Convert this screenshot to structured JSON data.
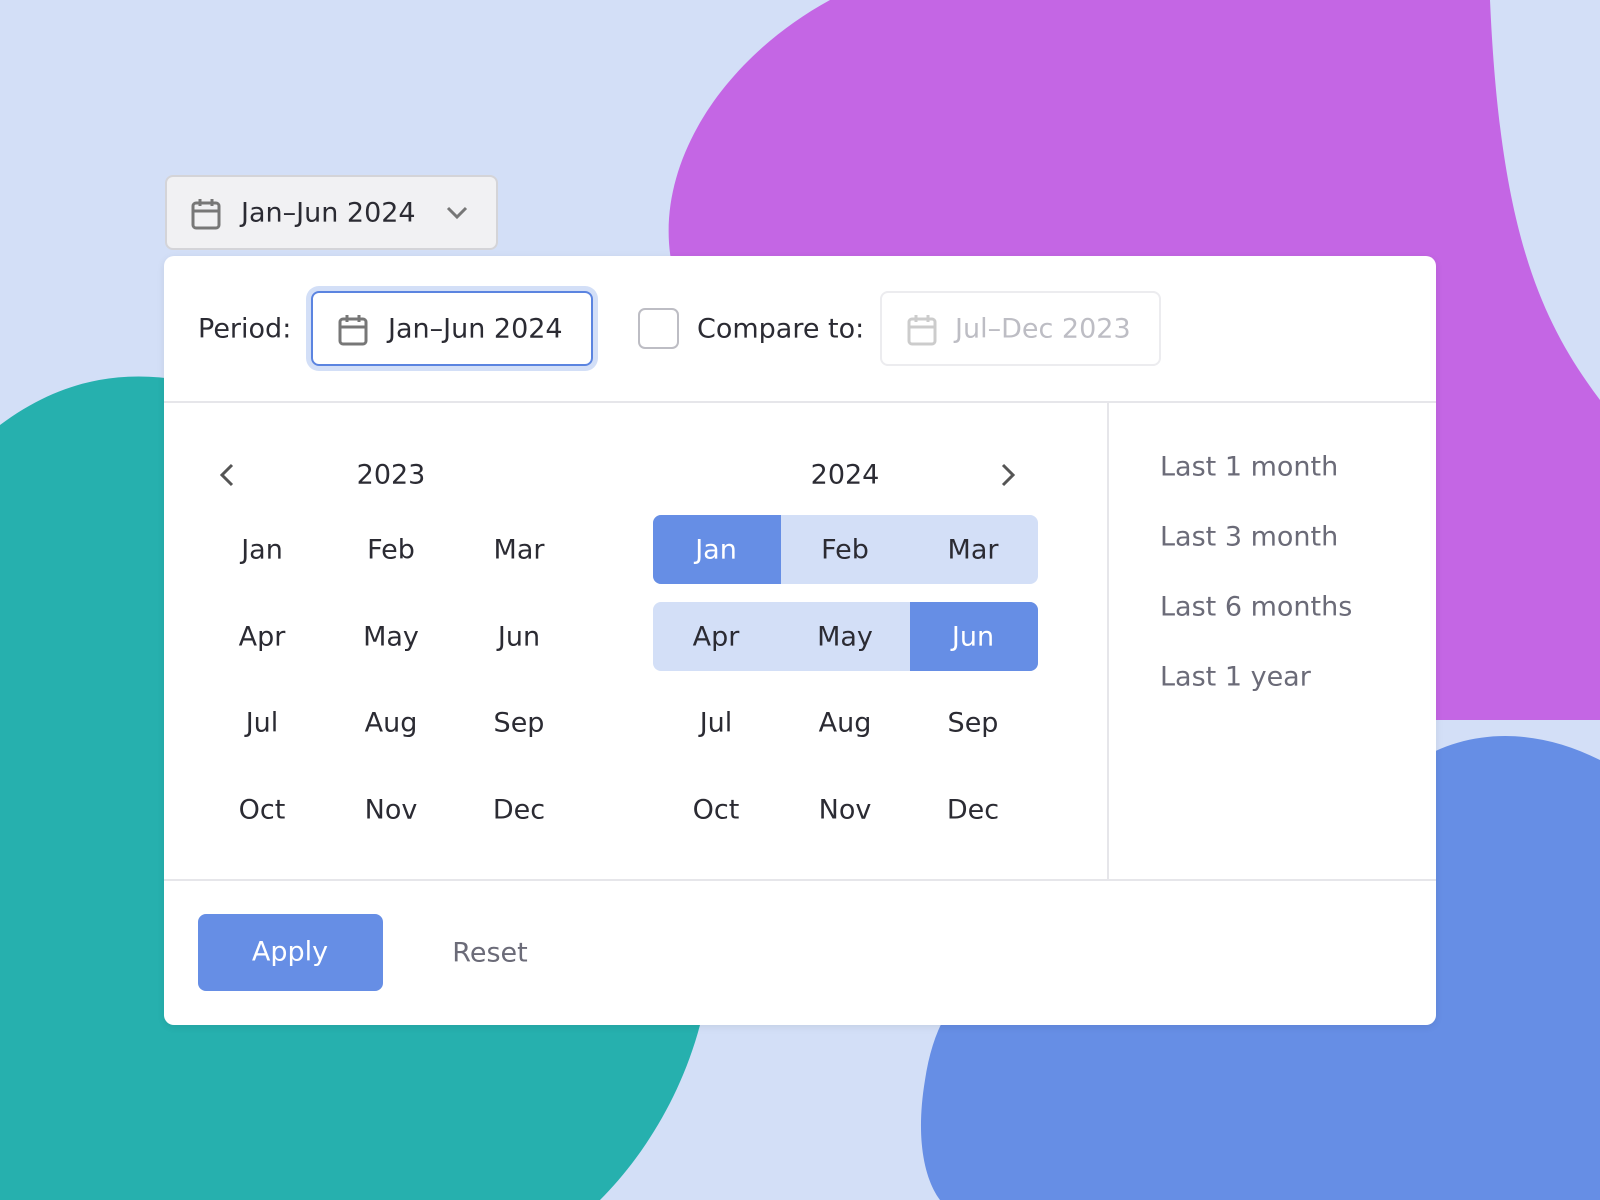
{
  "trigger": {
    "label": "Jan–Jun 2024"
  },
  "panel": {
    "period_label": "Period:",
    "period_value": "Jan–Jun 2024",
    "compare_label": "Compare to:",
    "compare_value": "Jul–Dec 2023",
    "calendars": [
      {
        "year": "2023",
        "months": [
          "Jan",
          "Feb",
          "Mar",
          "Apr",
          "May",
          "Jun",
          "Jul",
          "Aug",
          "Sep",
          "Oct",
          "Nov",
          "Dec"
        ]
      },
      {
        "year": "2024",
        "months": [
          "Jan",
          "Feb",
          "Mar",
          "Apr",
          "May",
          "Jun",
          "Jul",
          "Aug",
          "Sep",
          "Oct",
          "Nov",
          "Dec"
        ]
      }
    ],
    "presets": [
      "Last 1 month",
      "Last 3 month",
      "Last 6 months",
      "Last 1 year"
    ],
    "apply": "Apply",
    "reset": "Reset"
  }
}
